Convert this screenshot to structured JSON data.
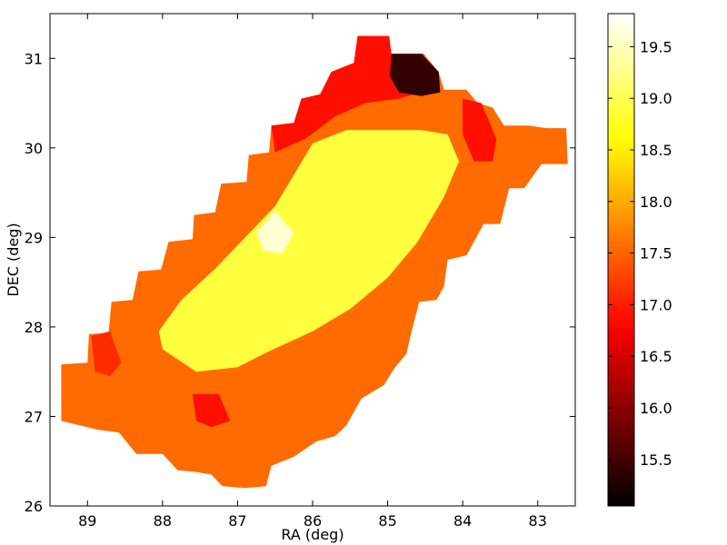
{
  "chart_data": {
    "type": "heatmap",
    "title": "",
    "xlabel": "RA (deg)",
    "ylabel": "DEC (deg)",
    "xlim": [
      89.5,
      82.5
    ],
    "ylim": [
      26,
      31.5
    ],
    "x_inverted": true,
    "xticks": [
      89,
      88,
      87,
      86,
      85,
      84,
      83
    ],
    "yticks": [
      26,
      27,
      28,
      29,
      30,
      31
    ],
    "grid": false,
    "colormap": "hot",
    "colorbar": {
      "range": [
        15.05,
        19.82
      ],
      "ticks": [
        15.5,
        16.0,
        16.5,
        17.0,
        17.5,
        18.0,
        18.5,
        19.0,
        19.5
      ],
      "tick_labels": [
        "15.5",
        "16.0",
        "16.5",
        "17.0",
        "17.5",
        "18.0",
        "18.5",
        "19.0",
        "19.5"
      ]
    },
    "footprint_polygon": [
      [
        89.35,
        27.58
      ],
      [
        89.0,
        27.6
      ],
      [
        88.98,
        27.92
      ],
      [
        88.72,
        27.93
      ],
      [
        88.68,
        28.28
      ],
      [
        88.4,
        28.3
      ],
      [
        88.32,
        28.62
      ],
      [
        88.02,
        28.64
      ],
      [
        87.92,
        28.95
      ],
      [
        87.6,
        28.98
      ],
      [
        87.58,
        29.25
      ],
      [
        87.3,
        29.28
      ],
      [
        87.22,
        29.6
      ],
      [
        86.88,
        29.62
      ],
      [
        86.85,
        29.92
      ],
      [
        86.58,
        29.95
      ],
      [
        86.55,
        30.25
      ],
      [
        86.25,
        30.28
      ],
      [
        86.15,
        30.55
      ],
      [
        85.9,
        30.6
      ],
      [
        85.75,
        30.85
      ],
      [
        85.45,
        30.95
      ],
      [
        85.4,
        31.25
      ],
      [
        84.98,
        31.25
      ],
      [
        84.95,
        31.05
      ],
      [
        84.52,
        31.05
      ],
      [
        84.32,
        30.85
      ],
      [
        84.25,
        30.65
      ],
      [
        83.95,
        30.65
      ],
      [
        83.8,
        30.5
      ],
      [
        83.6,
        30.45
      ],
      [
        83.45,
        30.25
      ],
      [
        83.12,
        30.25
      ],
      [
        82.88,
        30.22
      ],
      [
        82.62,
        30.22
      ],
      [
        82.6,
        29.82
      ],
      [
        82.95,
        29.82
      ],
      [
        83.18,
        29.55
      ],
      [
        83.38,
        29.55
      ],
      [
        83.5,
        29.15
      ],
      [
        83.72,
        29.15
      ],
      [
        83.95,
        28.8
      ],
      [
        84.2,
        28.75
      ],
      [
        84.25,
        28.45
      ],
      [
        84.35,
        28.3
      ],
      [
        84.58,
        28.28
      ],
      [
        84.68,
        27.95
      ],
      [
        84.75,
        27.7
      ],
      [
        84.9,
        27.55
      ],
      [
        85.05,
        27.35
      ],
      [
        85.35,
        27.2
      ],
      [
        85.55,
        26.9
      ],
      [
        85.7,
        26.78
      ],
      [
        85.95,
        26.72
      ],
      [
        86.25,
        26.55
      ],
      [
        86.55,
        26.45
      ],
      [
        86.62,
        26.22
      ],
      [
        86.9,
        26.2
      ],
      [
        87.2,
        26.22
      ],
      [
        87.35,
        26.35
      ],
      [
        87.55,
        26.38
      ],
      [
        87.8,
        26.4
      ],
      [
        88.0,
        26.58
      ],
      [
        88.35,
        26.58
      ],
      [
        88.58,
        26.82
      ],
      [
        88.85,
        26.85
      ],
      [
        89.35,
        26.95
      ]
    ],
    "regions": [
      {
        "name": "bright core",
        "value": 18.9,
        "polygon": [
          [
            88.0,
            27.75
          ],
          [
            87.55,
            27.5
          ],
          [
            87.0,
            27.55
          ],
          [
            86.6,
            27.72
          ],
          [
            86.0,
            27.95
          ],
          [
            85.5,
            28.2
          ],
          [
            85.0,
            28.55
          ],
          [
            84.6,
            28.95
          ],
          [
            84.25,
            29.45
          ],
          [
            84.05,
            29.85
          ],
          [
            84.2,
            30.15
          ],
          [
            84.55,
            30.2
          ],
          [
            85.1,
            30.2
          ],
          [
            85.55,
            30.2
          ],
          [
            86.0,
            30.05
          ],
          [
            86.25,
            29.7
          ],
          [
            86.5,
            29.35
          ],
          [
            86.9,
            29.0
          ],
          [
            87.3,
            28.65
          ],
          [
            87.75,
            28.3
          ],
          [
            88.05,
            27.95
          ]
        ]
      },
      {
        "name": "brightest spot",
        "value": 19.6,
        "polygon": [
          [
            86.75,
            29.05
          ],
          [
            86.5,
            29.3
          ],
          [
            86.25,
            29.05
          ],
          [
            86.4,
            28.82
          ],
          [
            86.65,
            28.85
          ]
        ]
      },
      {
        "name": "north-east red strip",
        "value": 16.9,
        "polygon": [
          [
            86.55,
            30.25
          ],
          [
            86.25,
            30.28
          ],
          [
            86.15,
            30.55
          ],
          [
            85.9,
            30.6
          ],
          [
            85.75,
            30.85
          ],
          [
            85.45,
            30.95
          ],
          [
            85.4,
            31.25
          ],
          [
            84.98,
            31.25
          ],
          [
            84.95,
            31.05
          ],
          [
            84.52,
            31.05
          ],
          [
            84.45,
            30.65
          ],
          [
            84.85,
            30.55
          ],
          [
            85.3,
            30.5
          ],
          [
            85.7,
            30.35
          ],
          [
            86.1,
            30.1
          ],
          [
            86.5,
            29.95
          ]
        ]
      },
      {
        "name": "dark corner",
        "value": 15.4,
        "polygon": [
          [
            84.95,
            31.05
          ],
          [
            84.55,
            31.05
          ],
          [
            84.32,
            30.85
          ],
          [
            84.3,
            30.62
          ],
          [
            84.55,
            30.58
          ],
          [
            84.85,
            30.62
          ],
          [
            84.97,
            30.8
          ]
        ]
      },
      {
        "name": "eastern red patch",
        "value": 16.9,
        "polygon": [
          [
            84.0,
            30.55
          ],
          [
            83.75,
            30.5
          ],
          [
            83.55,
            30.1
          ],
          [
            83.6,
            29.85
          ],
          [
            83.85,
            29.85
          ],
          [
            84.0,
            30.15
          ]
        ]
      },
      {
        "name": "western red patch",
        "value": 17.1,
        "polygon": [
          [
            88.95,
            27.9
          ],
          [
            88.7,
            27.95
          ],
          [
            88.55,
            27.6
          ],
          [
            88.7,
            27.45
          ],
          [
            88.9,
            27.5
          ]
        ]
      },
      {
        "name": "southern red patch",
        "value": 16.9,
        "polygon": [
          [
            87.6,
            27.25
          ],
          [
            87.25,
            27.25
          ],
          [
            87.1,
            26.95
          ],
          [
            87.35,
            26.88
          ],
          [
            87.55,
            26.95
          ]
        ]
      }
    ]
  }
}
